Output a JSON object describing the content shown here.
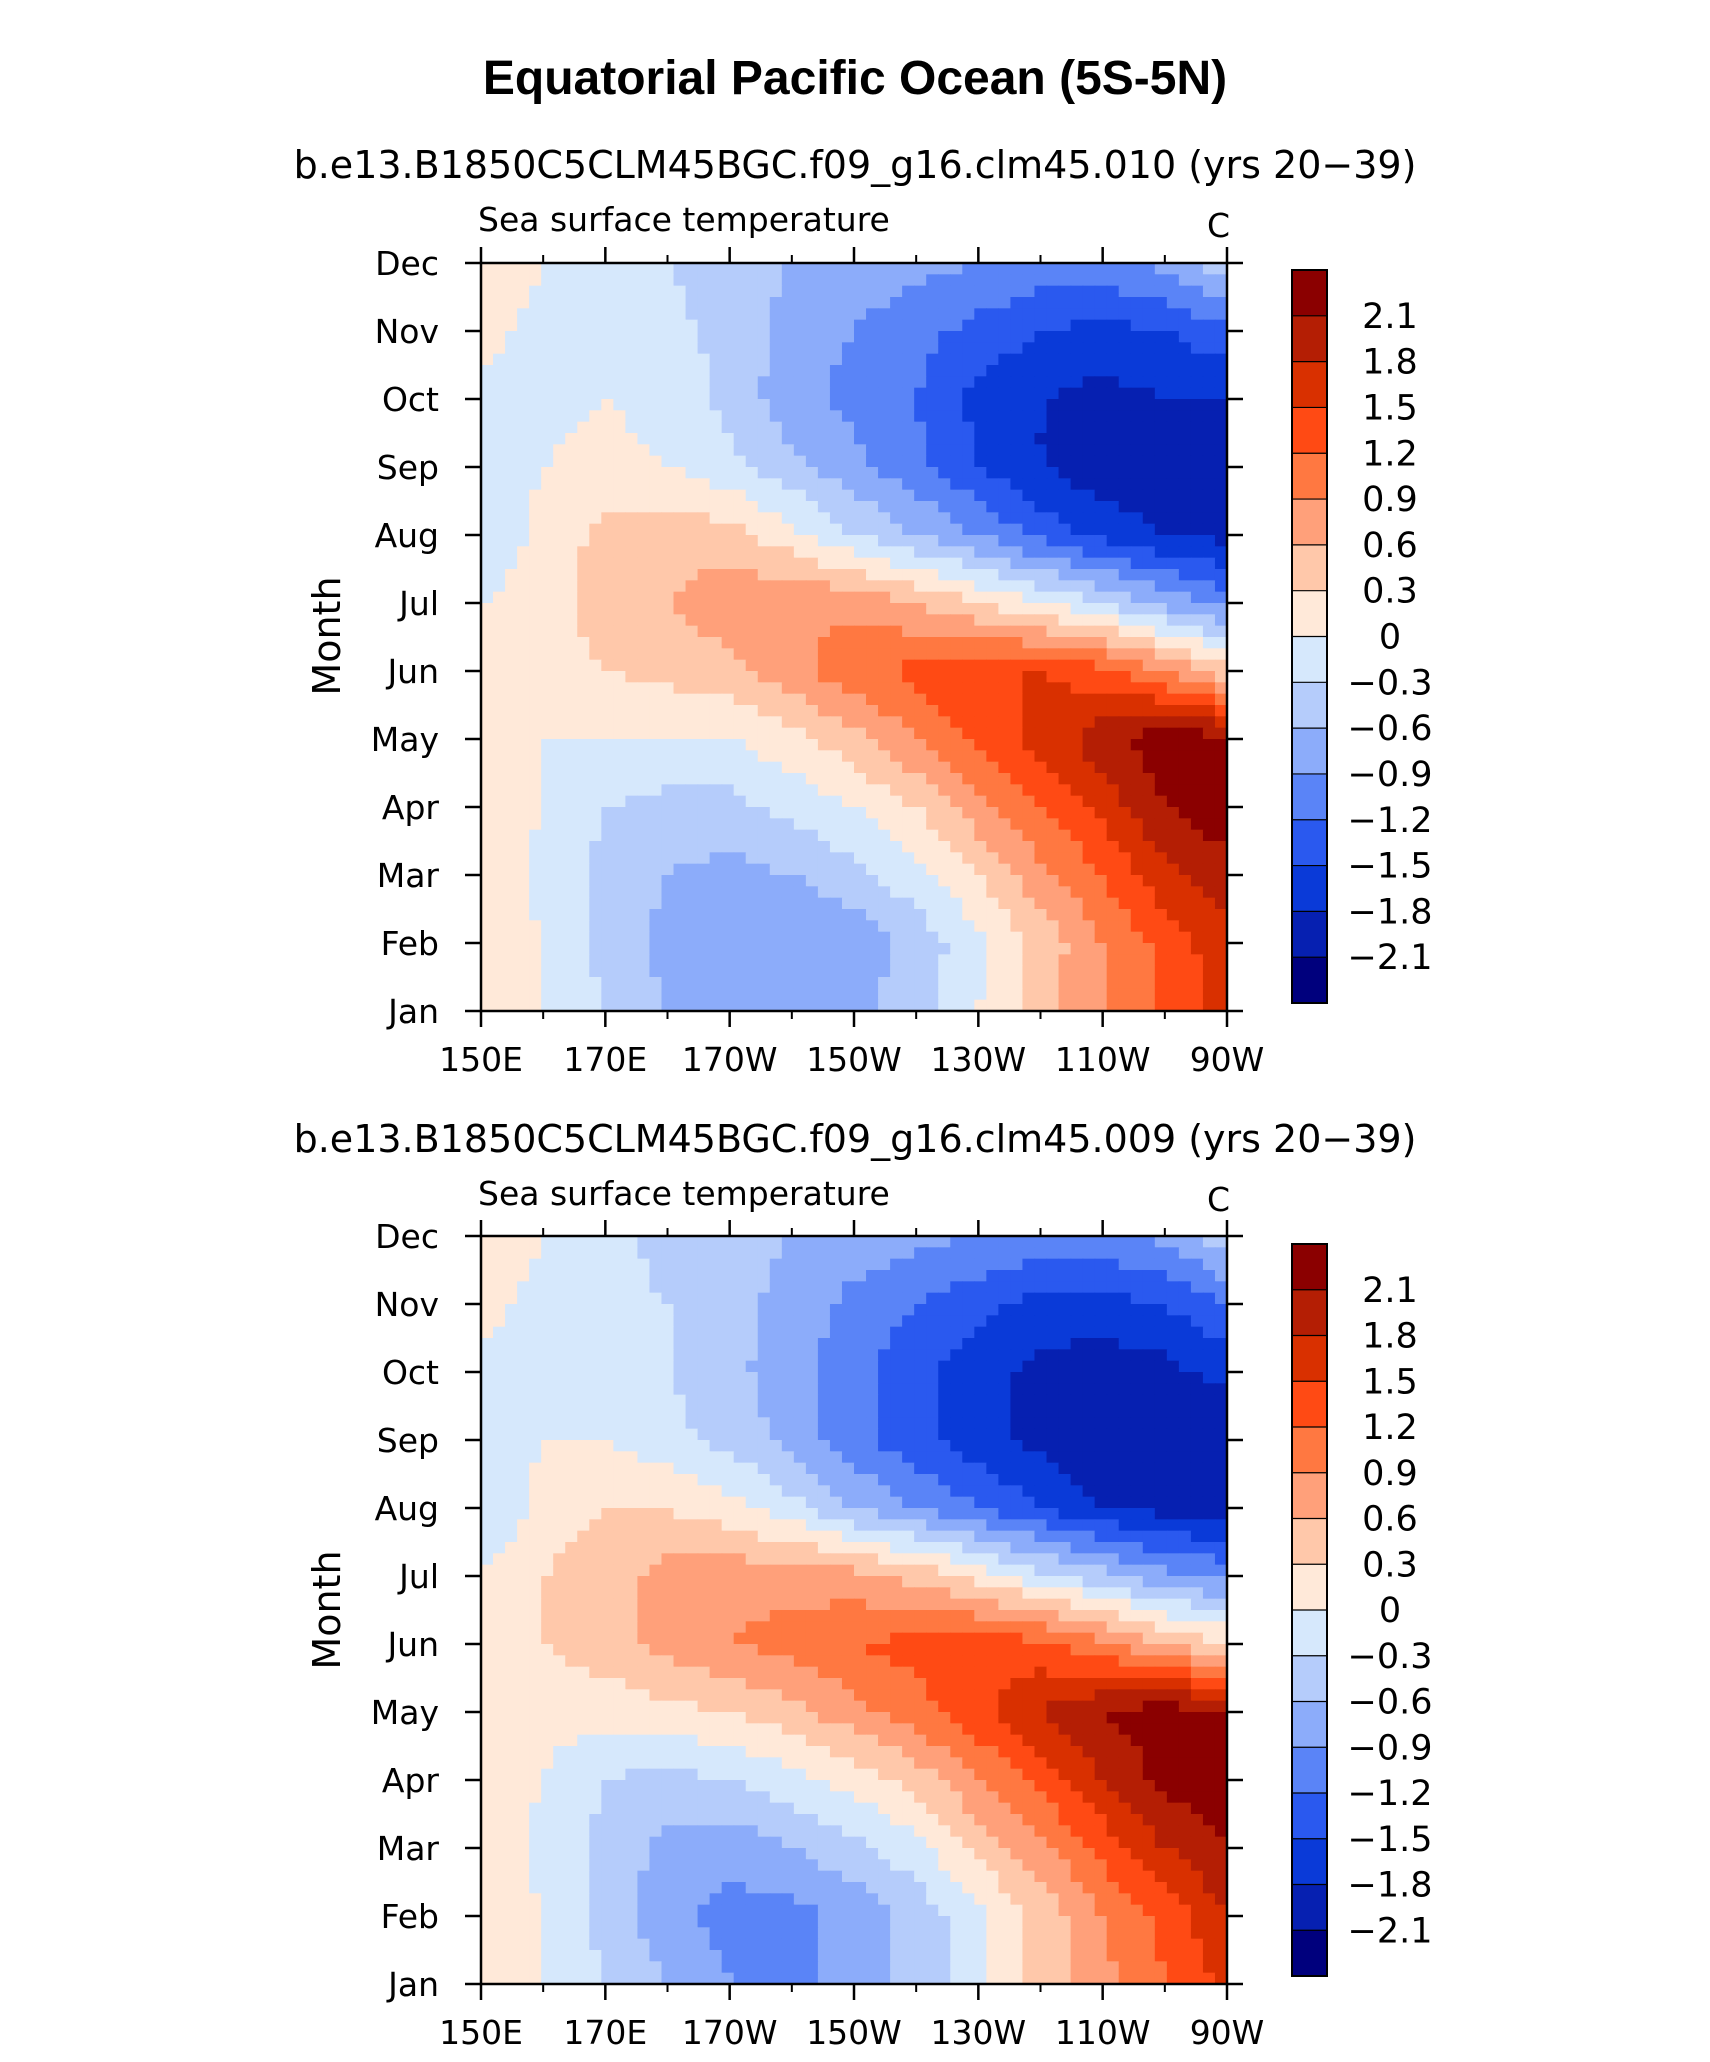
{
  "title": "Equatorial Pacific Ocean (5S-5N)",
  "panels": [
    {
      "subtitle": "b.e13.B1850C5CLM45BGC.f09_g16.clm45.010 (yrs 20−39)",
      "left_label": "Sea surface temperature",
      "right_label": "C",
      "ylabel": "Month"
    },
    {
      "subtitle": "b.e13.B1850C5CLM45BGC.f09_g16.clm45.009 (yrs 20−39)",
      "left_label": "Sea surface temperature",
      "right_label": "C",
      "ylabel": "Month"
    }
  ],
  "chart_data": [
    {
      "type": "heatmap",
      "title": "Equatorial Pacific Ocean (5S-5N)",
      "subtitle": "b.e13.B1850C5CLM45BGC.f09_g16.clm45.010 (yrs 20−39)",
      "variable": "Sea surface temperature",
      "units": "C",
      "ylabel": "Month",
      "x_ticks": [
        "150E",
        "170E",
        "170W",
        "150W",
        "130W",
        "110W",
        "90W"
      ],
      "y_ticks": [
        "Jan",
        "Feb",
        "Mar",
        "Apr",
        "May",
        "Jun",
        "Jul",
        "Aug",
        "Sep",
        "Oct",
        "Nov",
        "Dec"
      ],
      "xlim": [
        150,
        270
      ],
      "colorbar_levels": [
        "2.1",
        "1.8",
        "1.5",
        "1.2",
        "0.9",
        "0.6",
        "0.3",
        "0",
        "−0.3",
        "−0.6",
        "−0.9",
        "−1.2",
        "−1.5",
        "−1.8",
        "−2.1"
      ],
      "colorbar_colors": [
        "#8b0000",
        "#b41e04",
        "#d93000",
        "#ff4a14",
        "#ff7841",
        "#ffa07a",
        "#ffc8aa",
        "#ffe9d9",
        "#d6e8fc",
        "#b5ccfb",
        "#8cacfa",
        "#5a84f7",
        "#2a59ef",
        "#0a3ad8",
        "#0620b1",
        "#00007d"
      ],
      "lon": [
        150,
        160,
        170,
        180,
        190,
        200,
        210,
        220,
        230,
        240,
        250,
        260,
        270
      ],
      "values": [
        [
          0.2,
          0.0,
          -0.3,
          -0.6,
          -0.8,
          -0.9,
          -0.7,
          -0.4,
          0.0,
          0.5,
          0.9,
          1.3,
          1.6
        ],
        [
          0.2,
          0.0,
          -0.4,
          -0.7,
          -0.9,
          -0.9,
          -0.8,
          -0.5,
          -0.1,
          0.4,
          0.9,
          1.3,
          1.7
        ],
        [
          0.2,
          -0.1,
          -0.4,
          -0.6,
          -0.7,
          -0.6,
          -0.4,
          -0.1,
          0.3,
          0.8,
          1.2,
          1.7,
          2.0
        ],
        [
          0.2,
          0.0,
          -0.3,
          -0.4,
          -0.4,
          -0.2,
          0.0,
          0.3,
          0.8,
          1.2,
          1.6,
          2.1,
          2.3
        ],
        [
          0.2,
          0.0,
          0.0,
          0.0,
          0.0,
          0.2,
          0.5,
          0.9,
          1.3,
          1.6,
          2.0,
          2.3,
          2.2
        ],
        [
          0.2,
          0.2,
          0.3,
          0.4,
          0.5,
          0.8,
          1.1,
          1.3,
          1.5,
          1.5,
          1.3,
          0.9,
          0.4
        ],
        [
          0.0,
          0.2,
          0.4,
          0.6,
          0.8,
          0.9,
          0.8,
          0.6,
          0.3,
          0.0,
          -0.3,
          -0.7,
          -1.0
        ],
        [
          -0.3,
          0.1,
          0.4,
          0.5,
          0.4,
          0.1,
          -0.3,
          -0.6,
          -0.9,
          -1.3,
          -1.6,
          -1.8,
          -1.9
        ],
        [
          -0.2,
          0.0,
          0.1,
          0.0,
          -0.2,
          -0.5,
          -0.8,
          -1.1,
          -1.5,
          -1.8,
          -2.0,
          -2.0,
          -2.1
        ],
        [
          -0.1,
          -0.1,
          0.0,
          -0.1,
          -0.4,
          -0.8,
          -1.0,
          -1.2,
          -1.6,
          -1.8,
          -1.9,
          -1.8,
          -1.8
        ],
        [
          0.1,
          -0.1,
          -0.1,
          -0.2,
          -0.4,
          -0.7,
          -0.9,
          -1.1,
          -1.3,
          -1.5,
          -1.6,
          -1.5,
          -1.3
        ],
        [
          0.2,
          0.0,
          -0.2,
          -0.3,
          -0.5,
          -0.6,
          -0.7,
          -0.8,
          -0.9,
          -1.0,
          -1.0,
          -0.8,
          -0.4
        ]
      ]
    },
    {
      "type": "heatmap",
      "title": "Equatorial Pacific Ocean (5S-5N)",
      "subtitle": "b.e13.B1850C5CLM45BGC.f09_g16.clm45.009 (yrs 20−39)",
      "variable": "Sea surface temperature",
      "units": "C",
      "ylabel": "Month",
      "x_ticks": [
        "150E",
        "170E",
        "170W",
        "150W",
        "130W",
        "110W",
        "90W"
      ],
      "y_ticks": [
        "Jan",
        "Feb",
        "Mar",
        "Apr",
        "May",
        "Jun",
        "Jul",
        "Aug",
        "Sep",
        "Oct",
        "Nov",
        "Dec"
      ],
      "xlim": [
        150,
        270
      ],
      "colorbar_levels": [
        "2.1",
        "1.8",
        "1.5",
        "1.2",
        "0.9",
        "0.6",
        "0.3",
        "0",
        "−0.3",
        "−0.6",
        "−0.9",
        "−1.2",
        "−1.5",
        "−1.8",
        "−2.1"
      ],
      "colorbar_colors": [
        "#8b0000",
        "#b41e04",
        "#d93000",
        "#ff4a14",
        "#ff7841",
        "#ffa07a",
        "#ffc8aa",
        "#ffe9d9",
        "#d6e8fc",
        "#b5ccfb",
        "#8cacfa",
        "#5a84f7",
        "#2a59ef",
        "#0a3ad8",
        "#0620b1",
        "#00007d"
      ],
      "lon": [
        150,
        160,
        170,
        180,
        190,
        200,
        210,
        220,
        230,
        240,
        250,
        260,
        270
      ],
      "values": [
        [
          0.2,
          0.0,
          -0.3,
          -0.6,
          -0.9,
          -1.0,
          -0.8,
          -0.5,
          -0.1,
          0.4,
          0.8,
          1.2,
          1.6
        ],
        [
          0.2,
          0.0,
          -0.4,
          -0.8,
          -1.0,
          -1.0,
          -0.8,
          -0.5,
          -0.1,
          0.4,
          0.9,
          1.3,
          1.8
        ],
        [
          0.2,
          -0.1,
          -0.4,
          -0.7,
          -0.8,
          -0.6,
          -0.4,
          -0.1,
          0.4,
          0.8,
          1.3,
          1.8,
          2.1
        ],
        [
          0.2,
          0.0,
          -0.3,
          -0.4,
          -0.3,
          -0.1,
          0.1,
          0.4,
          0.9,
          1.3,
          1.8,
          2.2,
          2.3
        ],
        [
          0.2,
          0.1,
          0.1,
          0.2,
          0.3,
          0.5,
          0.8,
          1.1,
          1.4,
          1.8,
          2.1,
          2.3,
          2.1
        ],
        [
          0.2,
          0.3,
          0.5,
          0.7,
          0.9,
          1.0,
          1.2,
          1.3,
          1.4,
          1.3,
          1.0,
          0.6,
          0.3
        ],
        [
          0.0,
          0.3,
          0.5,
          0.7,
          0.8,
          0.8,
          0.7,
          0.5,
          0.2,
          -0.2,
          -0.5,
          -0.8,
          -1.0
        ],
        [
          -0.3,
          0.1,
          0.3,
          0.3,
          0.1,
          -0.2,
          -0.6,
          -0.9,
          -1.2,
          -1.5,
          -1.8,
          -1.9,
          -2.0
        ],
        [
          -0.2,
          0.0,
          0.0,
          -0.2,
          -0.4,
          -0.7,
          -1.1,
          -1.4,
          -1.7,
          -1.9,
          -2.1,
          -2.1,
          -2.1
        ],
        [
          -0.1,
          -0.1,
          -0.1,
          -0.3,
          -0.5,
          -0.8,
          -1.1,
          -1.4,
          -1.7,
          -1.9,
          -2.0,
          -1.9,
          -1.7
        ],
        [
          0.1,
          -0.1,
          -0.2,
          -0.3,
          -0.5,
          -0.7,
          -1.0,
          -1.2,
          -1.4,
          -1.6,
          -1.6,
          -1.5,
          -1.2
        ],
        [
          0.2,
          0.0,
          -0.2,
          -0.4,
          -0.5,
          -0.6,
          -0.7,
          -0.8,
          -0.9,
          -1.0,
          -1.0,
          -0.8,
          -0.4
        ]
      ]
    }
  ]
}
